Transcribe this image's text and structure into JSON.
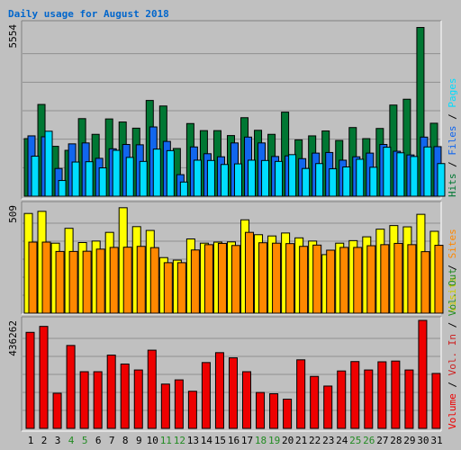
{
  "chart_data": {
    "title": "Daily usage for August 2018",
    "type": "bar",
    "categories": [
      "1",
      "2",
      "3",
      "4",
      "5",
      "6",
      "7",
      "8",
      "9",
      "10",
      "11",
      "12",
      "13",
      "14",
      "15",
      "16",
      "17",
      "18",
      "19",
      "20",
      "21",
      "22",
      "23",
      "24",
      "25",
      "26",
      "27",
      "28",
      "29",
      "30",
      "31"
    ],
    "weekend_days": [
      "4",
      "5",
      "11",
      "12",
      "18",
      "19",
      "25",
      "26"
    ],
    "colors": {
      "title": "#0066cc",
      "background": "#c0c0c0",
      "hits": "#007733",
      "files": "#1166ee",
      "pages": "#00ddff",
      "visits": "#ffff00",
      "sites": "#ff8800",
      "volume": "#ee0000",
      "weekday_label": "#000000",
      "weekend_label": "#228b22"
    },
    "panels": [
      {
        "id": "hits-files-pages",
        "max_label": "5554",
        "ylim": [
          0,
          5554
        ],
        "right_labels": [
          {
            "text": "Hits",
            "color": "#007733"
          },
          {
            "text": "Files",
            "color": "#1166ee"
          },
          {
            "text": "Pages",
            "color": "#00ddff"
          }
        ],
        "series": [
          {
            "name": "Hits",
            "color": "#007733",
            "values": [
              1870,
              2980,
              1620,
              1490,
              2520,
              2010,
              2510,
              2410,
              2210,
              3110,
              2930,
              1550,
              2360,
              2130,
              2130,
              1970,
              2550,
              2140,
              2010,
              2730,
              1830,
              1960,
              2120,
              1810,
              2230,
              1870,
              2200,
              2960,
              3150,
              5480,
              2370
            ]
          },
          {
            "name": "Files",
            "color": "#1166ee",
            "values": [
              1960,
              1930,
              900,
              1700,
              1730,
              1230,
              1540,
              1680,
              1670,
              2250,
              1780,
              700,
              1600,
              1380,
              1280,
              1730,
              1920,
              1730,
              1290,
              1310,
              1220,
              1400,
              1420,
              1170,
              1280,
              1400,
              1680,
              1460,
              1340,
              1920,
              1610
            ]
          },
          {
            "name": "Pages",
            "color": "#00ddff",
            "values": [
              1300,
              2110,
              510,
              1110,
              1120,
              920,
              1490,
              1260,
              1130,
              1530,
              1480,
              460,
              1170,
              1160,
              1030,
              1050,
              1170,
              1160,
              1130,
              1350,
              900,
              1060,
              890,
              950,
              1200,
              940,
              1590,
              1410,
              1290,
              1600,
              1060
            ]
          }
        ]
      },
      {
        "id": "visits-sites",
        "max_label": "509",
        "ylim": [
          0,
          509
        ],
        "right_labels": [
          {
            "text": "Visits",
            "color": "#cccc00"
          },
          {
            "text": "Sites",
            "color": "#ff8800"
          }
        ],
        "series": [
          {
            "name": "Visits",
            "color": "#ffff00",
            "values": [
              470,
              480,
              330,
              400,
              333,
              340,
              381,
              497,
              408,
              390,
              262,
              250,
              350,
              330,
              335,
              336,
              440,
              370,
              364,
              378,
              355,
              340,
              276,
              330,
              342,
              360,
              396,
              413,
              407,
              466,
              386
            ]
          },
          {
            "name": "Sites",
            "color": "#ff8800",
            "values": [
              335,
              335,
              291,
              291,
              292,
              302,
              310,
              311,
              315,
              309,
              238,
              238,
              298,
              323,
              329,
              319,
              381,
              332,
              330,
              328,
              315,
              321,
              297,
              310,
              310,
              318,
              323,
              329,
              323,
              290,
              320
            ]
          }
        ]
      },
      {
        "id": "volume",
        "max_label": "436262",
        "ylim": [
          0,
          436262
        ],
        "right_labels": [
          {
            "text": "Volume",
            "color": "#ee0000"
          },
          {
            "text": "Vol. In",
            "color": "#cc2222"
          },
          {
            "text": "Vol. Out",
            "color": "#228b22"
          }
        ],
        "series": [
          {
            "name": "Volume",
            "color": "#ee0000",
            "values": [
              388000,
              412000,
              142000,
              335000,
              229000,
              229000,
              296000,
              260000,
              236000,
              316000,
              179000,
              196000,
              150000,
              266000,
              306000,
              285000,
              229000,
              145000,
              140000,
              118000,
              277000,
              210000,
              171000,
              232000,
              270000,
              236000,
              269000,
              272000,
              236000,
              436262,
              222000
            ]
          }
        ]
      }
    ],
    "separator": " / "
  }
}
